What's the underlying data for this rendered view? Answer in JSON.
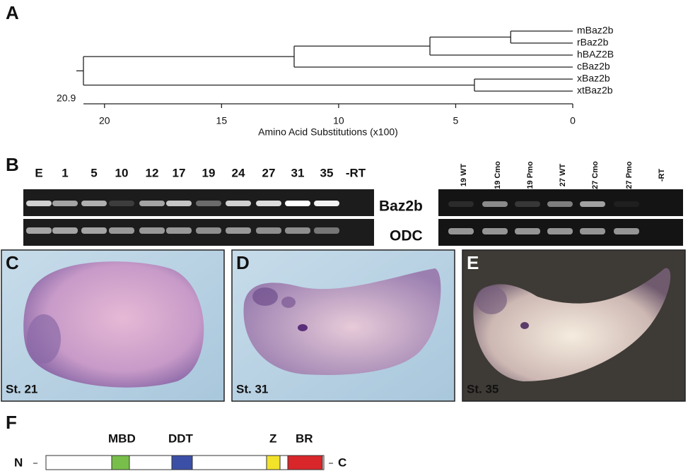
{
  "panel_a": {
    "label": "A",
    "tree": {
      "leaves": [
        "mBaz2b",
        "rBaz2b",
        "hBAZ2B",
        "cBaz2b",
        "xBaz2b",
        "xtBaz2b"
      ],
      "nodes": [
        {
          "children": [
            0,
            1
          ],
          "height": 2.65
        },
        {
          "children": [
            6,
            2
          ],
          "height": 6.1
        },
        {
          "children": [
            7,
            3
          ],
          "height": 11.9
        },
        {
          "children": [
            4,
            5
          ],
          "height": 4.2
        },
        {
          "children": [
            8,
            9
          ],
          "height": 20.9
        }
      ],
      "root_height": 20.9,
      "xlim": [
        20.9,
        0
      ],
      "xticks": [
        20,
        15,
        10,
        5,
        0
      ],
      "axis_label": "Amino Acid Substitutions (x100)"
    }
  },
  "panel_b": {
    "label": "B",
    "stage_lanes": [
      "E",
      "1",
      "5",
      "10",
      "12",
      "17",
      "19",
      "24",
      "27",
      "31",
      "35",
      "-RT"
    ],
    "mo_lanes": [
      "19 WT",
      "19 Cmo",
      "19 Pmo",
      "27 WT",
      "27 Cmo",
      "27 Pmo",
      "-RT"
    ],
    "gel_labels": [
      "Baz2b",
      "ODC"
    ]
  },
  "panel_c": {
    "label": "C",
    "stage": "St. 21"
  },
  "panel_d": {
    "label": "D",
    "stage": "St. 31"
  },
  "panel_e": {
    "label": "E",
    "stage": "St. 35"
  },
  "panel_f": {
    "label": "F",
    "domains": [
      "MBD",
      "DDT",
      "Z",
      "BR"
    ],
    "n_term": "N",
    "c_term": "C"
  }
}
